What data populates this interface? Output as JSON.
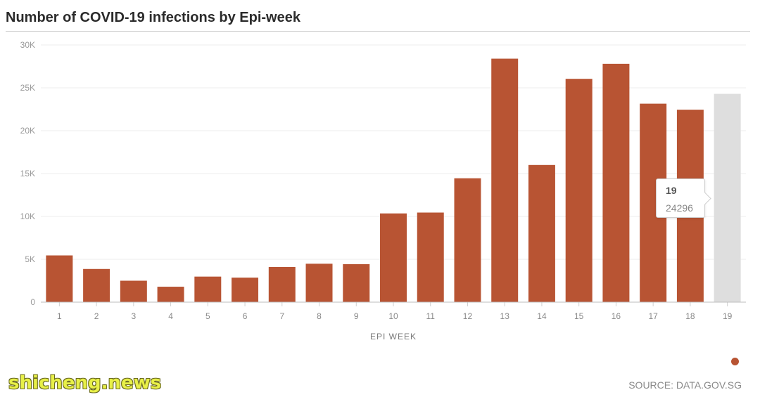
{
  "chart_data": {
    "type": "bar",
    "title": "Number of COVID-19 infections by Epi-week",
    "xlabel": "EPI WEEK",
    "ylabel": "",
    "ylim": [
      0,
      30000
    ],
    "yticks": [
      0,
      5000,
      10000,
      15000,
      20000,
      25000,
      30000
    ],
    "ytick_labels": [
      "0",
      "5K",
      "10K",
      "15K",
      "20K",
      "25K",
      "30K"
    ],
    "grid": true,
    "categories": [
      "1",
      "2",
      "3",
      "4",
      "5",
      "6",
      "7",
      "8",
      "9",
      "10",
      "11",
      "12",
      "13",
      "14",
      "15",
      "16",
      "17",
      "18",
      "19"
    ],
    "values": [
      5450,
      3870,
      2500,
      1800,
      2980,
      2860,
      4100,
      4480,
      4430,
      10350,
      10450,
      14450,
      28400,
      16000,
      26050,
      27800,
      23150,
      22450,
      24296
    ],
    "highlight_index": 18,
    "bar_color": "#b85433",
    "highlight_color": "#dedede",
    "tooltip": {
      "week": "19",
      "value": "24296"
    }
  },
  "source": "SOURCE: DATA.GOV.SG",
  "watermark": "shicheng.news"
}
